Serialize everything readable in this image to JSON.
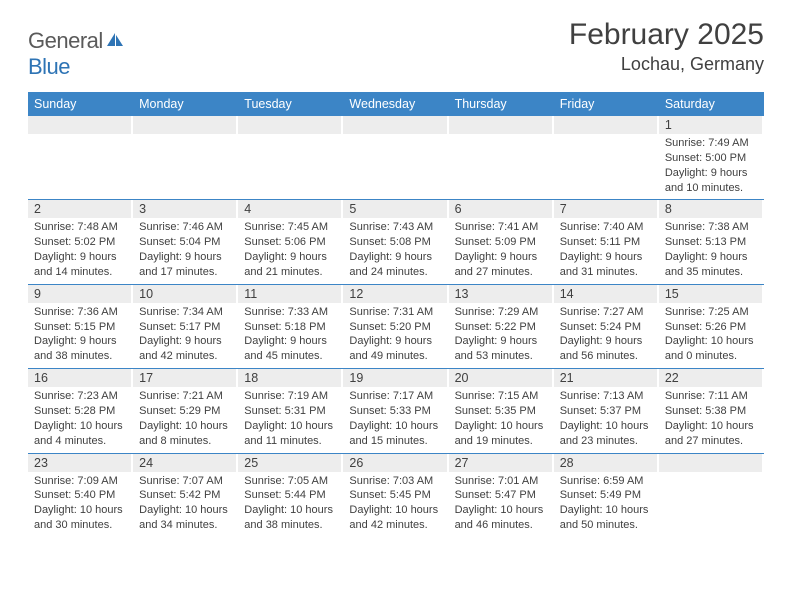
{
  "logo": {
    "text1": "General",
    "text2": "Blue"
  },
  "title": "February 2025",
  "location": "Lochau, Germany",
  "weekdays": [
    "Sunday",
    "Monday",
    "Tuesday",
    "Wednesday",
    "Thursday",
    "Friday",
    "Saturday"
  ],
  "style": {
    "header_bg": "#3c85c6",
    "header_fg": "#ffffff",
    "daynum_bg": "#ededed",
    "border_color": "#3c85c6",
    "body_text": "#404040",
    "logo_gray": "#5a5a5a",
    "logo_blue": "#2e74b5",
    "title_fontsize": 30,
    "location_fontsize": 18,
    "weekday_fontsize": 12.5,
    "content_fontsize": 11
  },
  "weeks": [
    [
      {
        "n": "",
        "sr": "",
        "ss": "",
        "dl": ""
      },
      {
        "n": "",
        "sr": "",
        "ss": "",
        "dl": ""
      },
      {
        "n": "",
        "sr": "",
        "ss": "",
        "dl": ""
      },
      {
        "n": "",
        "sr": "",
        "ss": "",
        "dl": ""
      },
      {
        "n": "",
        "sr": "",
        "ss": "",
        "dl": ""
      },
      {
        "n": "",
        "sr": "",
        "ss": "",
        "dl": ""
      },
      {
        "n": "1",
        "sr": "7:49 AM",
        "ss": "5:00 PM",
        "dl": "9 hours and 10 minutes."
      }
    ],
    [
      {
        "n": "2",
        "sr": "7:48 AM",
        "ss": "5:02 PM",
        "dl": "9 hours and 14 minutes."
      },
      {
        "n": "3",
        "sr": "7:46 AM",
        "ss": "5:04 PM",
        "dl": "9 hours and 17 minutes."
      },
      {
        "n": "4",
        "sr": "7:45 AM",
        "ss": "5:06 PM",
        "dl": "9 hours and 21 minutes."
      },
      {
        "n": "5",
        "sr": "7:43 AM",
        "ss": "5:08 PM",
        "dl": "9 hours and 24 minutes."
      },
      {
        "n": "6",
        "sr": "7:41 AM",
        "ss": "5:09 PM",
        "dl": "9 hours and 27 minutes."
      },
      {
        "n": "7",
        "sr": "7:40 AM",
        "ss": "5:11 PM",
        "dl": "9 hours and 31 minutes."
      },
      {
        "n": "8",
        "sr": "7:38 AM",
        "ss": "5:13 PM",
        "dl": "9 hours and 35 minutes."
      }
    ],
    [
      {
        "n": "9",
        "sr": "7:36 AM",
        "ss": "5:15 PM",
        "dl": "9 hours and 38 minutes."
      },
      {
        "n": "10",
        "sr": "7:34 AM",
        "ss": "5:17 PM",
        "dl": "9 hours and 42 minutes."
      },
      {
        "n": "11",
        "sr": "7:33 AM",
        "ss": "5:18 PM",
        "dl": "9 hours and 45 minutes."
      },
      {
        "n": "12",
        "sr": "7:31 AM",
        "ss": "5:20 PM",
        "dl": "9 hours and 49 minutes."
      },
      {
        "n": "13",
        "sr": "7:29 AM",
        "ss": "5:22 PM",
        "dl": "9 hours and 53 minutes."
      },
      {
        "n": "14",
        "sr": "7:27 AM",
        "ss": "5:24 PM",
        "dl": "9 hours and 56 minutes."
      },
      {
        "n": "15",
        "sr": "7:25 AM",
        "ss": "5:26 PM",
        "dl": "10 hours and 0 minutes."
      }
    ],
    [
      {
        "n": "16",
        "sr": "7:23 AM",
        "ss": "5:28 PM",
        "dl": "10 hours and 4 minutes."
      },
      {
        "n": "17",
        "sr": "7:21 AM",
        "ss": "5:29 PM",
        "dl": "10 hours and 8 minutes."
      },
      {
        "n": "18",
        "sr": "7:19 AM",
        "ss": "5:31 PM",
        "dl": "10 hours and 11 minutes."
      },
      {
        "n": "19",
        "sr": "7:17 AM",
        "ss": "5:33 PM",
        "dl": "10 hours and 15 minutes."
      },
      {
        "n": "20",
        "sr": "7:15 AM",
        "ss": "5:35 PM",
        "dl": "10 hours and 19 minutes."
      },
      {
        "n": "21",
        "sr": "7:13 AM",
        "ss": "5:37 PM",
        "dl": "10 hours and 23 minutes."
      },
      {
        "n": "22",
        "sr": "7:11 AM",
        "ss": "5:38 PM",
        "dl": "10 hours and 27 minutes."
      }
    ],
    [
      {
        "n": "23",
        "sr": "7:09 AM",
        "ss": "5:40 PM",
        "dl": "10 hours and 30 minutes."
      },
      {
        "n": "24",
        "sr": "7:07 AM",
        "ss": "5:42 PM",
        "dl": "10 hours and 34 minutes."
      },
      {
        "n": "25",
        "sr": "7:05 AM",
        "ss": "5:44 PM",
        "dl": "10 hours and 38 minutes."
      },
      {
        "n": "26",
        "sr": "7:03 AM",
        "ss": "5:45 PM",
        "dl": "10 hours and 42 minutes."
      },
      {
        "n": "27",
        "sr": "7:01 AM",
        "ss": "5:47 PM",
        "dl": "10 hours and 46 minutes."
      },
      {
        "n": "28",
        "sr": "6:59 AM",
        "ss": "5:49 PM",
        "dl": "10 hours and 50 minutes."
      },
      {
        "n": "",
        "sr": "",
        "ss": "",
        "dl": ""
      }
    ]
  ],
  "labels": {
    "sunrise": "Sunrise: ",
    "sunset": "Sunset: ",
    "daylight": "Daylight: "
  }
}
